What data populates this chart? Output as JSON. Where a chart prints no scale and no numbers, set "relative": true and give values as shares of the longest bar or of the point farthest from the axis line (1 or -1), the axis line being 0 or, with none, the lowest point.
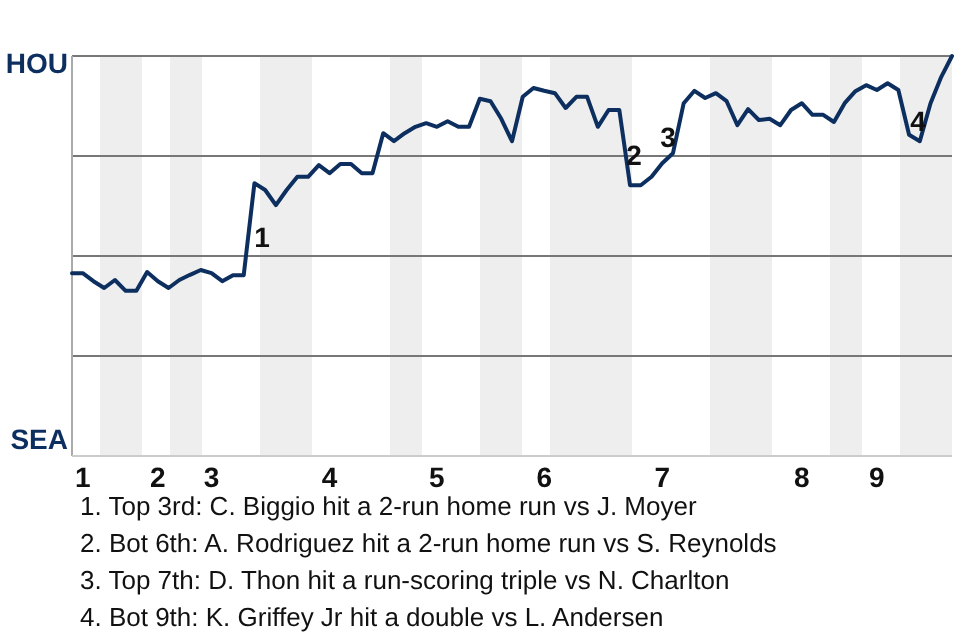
{
  "chart_data": {
    "type": "line",
    "categories": [
      null,
      "1",
      null,
      null,
      null,
      null,
      null,
      null,
      "2",
      null,
      null,
      null,
      null,
      "3",
      null,
      null,
      null,
      null,
      null,
      null,
      null,
      null,
      null,
      null,
      "4",
      null,
      null,
      null,
      null,
      null,
      null,
      null,
      null,
      null,
      "5",
      null,
      null,
      null,
      null,
      null,
      null,
      null,
      null,
      null,
      "6",
      null,
      null,
      null,
      null,
      null,
      null,
      null,
      null,
      null,
      null,
      "7",
      null,
      null,
      null,
      null,
      null,
      null,
      null,
      null,
      null,
      null,
      null,
      null,
      "8",
      null,
      null,
      null,
      null,
      null,
      null,
      "9",
      null,
      null,
      null,
      null,
      null,
      null,
      null
    ],
    "relative": true,
    "series": [
      {
        "color": "#0d2f5f",
        "values": [
          0.457,
          0.457,
          0.437,
          0.42,
          0.44,
          0.413,
          0.413,
          0.46,
          0.437,
          0.42,
          0.44,
          0.453,
          0.465,
          0.457,
          0.437,
          0.452,
          0.452,
          0.682,
          0.665,
          0.627,
          0.665,
          0.698,
          0.698,
          0.727,
          0.707,
          0.73,
          0.73,
          0.707,
          0.707,
          0.807,
          0.787,
          0.807,
          0.823,
          0.832,
          0.823,
          0.837,
          0.823,
          0.823,
          0.893,
          0.887,
          0.843,
          0.787,
          0.898,
          0.92,
          0.913,
          0.907,
          0.87,
          0.898,
          0.898,
          0.823,
          0.865,
          0.865,
          0.677,
          0.677,
          0.698,
          0.732,
          0.757,
          0.882,
          0.913,
          0.895,
          0.907,
          0.887,
          0.827,
          0.867,
          0.84,
          0.843,
          0.827,
          0.865,
          0.882,
          0.853,
          0.853,
          0.835,
          0.882,
          0.912,
          0.927,
          0.915,
          0.932,
          0.915,
          0.803,
          0.787,
          0.882,
          0.948,
          1
        ]
      }
    ],
    "grid": "y",
    "marker": "none",
    "annotations": [
      "HOU",
      "SEA",
      "1",
      "2",
      "3",
      "4",
      "1. Top 3rd: C. Biggio hit a 2-run home run vs J. Moyer",
      "2. Bot 6th: A. Rodriguez hit a 2-run home run vs S. Reynolds",
      "3. Top 7th: D. Thon hit a run-scoring triple vs N. Charlton",
      "4. Bot 9th: K. Griffey Jr hit a double vs L. Andersen"
    ]
  }
}
